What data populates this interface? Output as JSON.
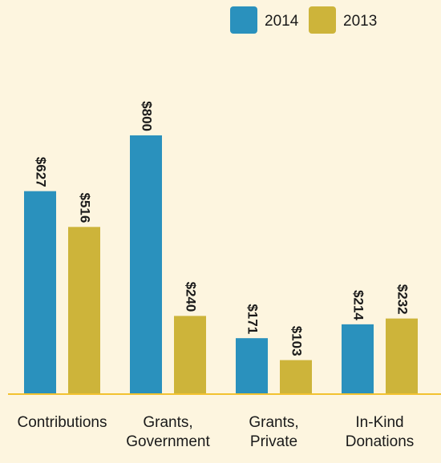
{
  "chart_data": {
    "type": "bar",
    "categories": [
      "Contributions",
      "Grants, Government",
      "Grants, Private",
      "In-Kind Donations"
    ],
    "series": [
      {
        "name": "2014",
        "color": "#2a91bd",
        "values": [
          627,
          800,
          171,
          214
        ],
        "value_labels": [
          "$627",
          "$800",
          "$171",
          "$214"
        ]
      },
      {
        "name": "2013",
        "color": "#cdb43a",
        "values": [
          516,
          240,
          103,
          232
        ],
        "value_labels": [
          "$516",
          "$240",
          "$103",
          "$232"
        ]
      }
    ],
    "legend": "top-right"
  }
}
